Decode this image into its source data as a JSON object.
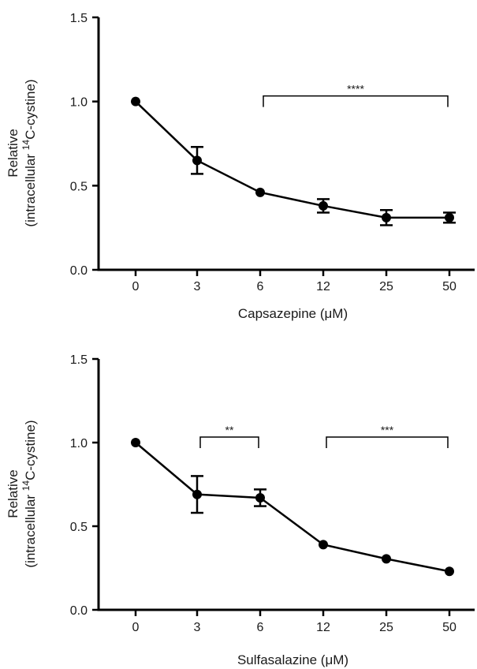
{
  "chart_data": [
    {
      "type": "line",
      "categories": [
        "0",
        "3",
        "6",
        "12",
        "25",
        "50"
      ],
      "series": [
        {
          "values": [
            1.0,
            0.65,
            0.46,
            0.38,
            0.31,
            0.31
          ],
          "errors": [
            0.0,
            0.08,
            0.0,
            0.04,
            0.045,
            0.03
          ]
        }
      ],
      "xlabel": "Capsazepine (μM)",
      "ylabel_line1": "Relative",
      "ylabel_line2_pre": "(intracellular ",
      "ylabel_line2_sup": "14",
      "ylabel_line2_post": "C-cystine)",
      "ylim": [
        0,
        1.5
      ],
      "yticks": [
        "0.0",
        "0.5",
        "1.0",
        "1.5"
      ],
      "annotations": [
        {
          "from": "6",
          "to": "50",
          "y": 1.0,
          "label": "****"
        }
      ],
      "grid": false
    },
    {
      "type": "line",
      "categories": [
        "0",
        "3",
        "6",
        "12",
        "25",
        "50"
      ],
      "series": [
        {
          "values": [
            1.0,
            0.69,
            0.67,
            0.39,
            0.305,
            0.23
          ],
          "errors": [
            0.0,
            0.11,
            0.05,
            0.0,
            0.0,
            0.0
          ]
        }
      ],
      "xlabel": "Sulfasalazine (μM)",
      "ylabel_line1": "Relative",
      "ylabel_line2_pre": "(intracellular ",
      "ylabel_line2_sup": "14",
      "ylabel_line2_post": "C-cystine)",
      "ylim": [
        0,
        1.5
      ],
      "yticks": [
        "0.0",
        "0.5",
        "1.0",
        "1.5"
      ],
      "annotations": [
        {
          "from": "3",
          "to": "6",
          "y": 1.0,
          "label": "**"
        },
        {
          "from": "12",
          "to": "50",
          "y": 1.0,
          "label": "***"
        }
      ],
      "grid": false
    }
  ]
}
